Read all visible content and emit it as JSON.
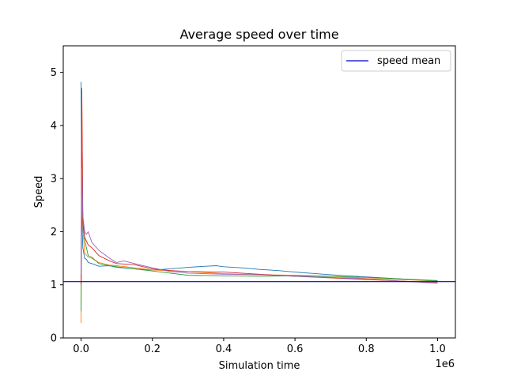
{
  "chart_data": {
    "type": "line",
    "title": "Average speed over time",
    "xlabel": "Simulation time",
    "ylabel": "Speed",
    "x_offset_label": "1e6",
    "xlim": [
      -0.05,
      1.05
    ],
    "ylim": [
      0,
      5.5
    ],
    "x_ticks": [
      0.0,
      0.2,
      0.4,
      0.6,
      0.8,
      1.0
    ],
    "x_tick_labels": [
      "0.0",
      "0.2",
      "0.4",
      "0.6",
      "0.8",
      "1.0"
    ],
    "y_ticks": [
      0,
      1,
      2,
      3,
      4,
      5
    ],
    "y_tick_labels": [
      "0",
      "1",
      "2",
      "3",
      "4",
      "5"
    ],
    "grid": false,
    "legend": {
      "placement": "top-right",
      "entries": [
        {
          "label": "speed mean",
          "color": "#0000cc"
        }
      ]
    },
    "hline": {
      "label": "speed mean",
      "y": 1.06,
      "color": "#0000cc"
    },
    "series": [
      {
        "color": "#1f77b4",
        "x": [
          0,
          0.002,
          0.005,
          0.01,
          0.015,
          0.02,
          0.03,
          0.05,
          0.08,
          0.1,
          0.15,
          0.2,
          0.25,
          0.3,
          0.35,
          0.38,
          0.4,
          0.45,
          0.5,
          0.55,
          0.6,
          0.7,
          0.8,
          0.9,
          1.0
        ],
        "y": [
          4.82,
          2.3,
          1.7,
          1.5,
          1.48,
          1.42,
          1.4,
          1.35,
          1.36,
          1.33,
          1.3,
          1.28,
          1.3,
          1.33,
          1.35,
          1.36,
          1.34,
          1.32,
          1.29,
          1.27,
          1.24,
          1.19,
          1.15,
          1.11,
          1.08
        ]
      },
      {
        "color": "#ff7f0e",
        "x": [
          0,
          0.002,
          0.005,
          0.01,
          0.02,
          0.03,
          0.05,
          0.08,
          0.1,
          0.15,
          0.2,
          0.3,
          0.4,
          0.5,
          0.6,
          0.7,
          0.8,
          0.9,
          1.0
        ],
        "y": [
          0.28,
          4.65,
          2.1,
          1.6,
          1.52,
          1.5,
          1.42,
          1.37,
          1.36,
          1.32,
          1.28,
          1.25,
          1.21,
          1.19,
          1.18,
          1.16,
          1.12,
          1.1,
          1.07
        ]
      },
      {
        "color": "#2ca02c",
        "x": [
          0,
          0.002,
          0.005,
          0.01,
          0.02,
          0.03,
          0.05,
          0.08,
          0.1,
          0.15,
          0.2,
          0.25,
          0.3,
          0.4,
          0.5,
          0.6,
          0.7,
          0.8,
          0.9,
          1.0
        ],
        "y": [
          0.5,
          3.8,
          2.2,
          1.85,
          1.55,
          1.52,
          1.4,
          1.36,
          1.34,
          1.3,
          1.26,
          1.22,
          1.18,
          1.17,
          1.16,
          1.17,
          1.16,
          1.14,
          1.11,
          1.07
        ]
      },
      {
        "color": "#d62728",
        "x": [
          0,
          0.002,
          0.005,
          0.01,
          0.02,
          0.03,
          0.05,
          0.08,
          0.1,
          0.15,
          0.2,
          0.25,
          0.3,
          0.4,
          0.5,
          0.6,
          0.7,
          0.8,
          0.9,
          1.0
        ],
        "y": [
          1.0,
          4.7,
          2.15,
          1.9,
          1.75,
          1.7,
          1.55,
          1.45,
          1.4,
          1.38,
          1.3,
          1.27,
          1.25,
          1.24,
          1.2,
          1.16,
          1.13,
          1.1,
          1.07,
          1.04
        ]
      },
      {
        "color": "#9467bd",
        "x": [
          0,
          0.002,
          0.005,
          0.01,
          0.015,
          0.02,
          0.03,
          0.05,
          0.08,
          0.1,
          0.12,
          0.15,
          0.2,
          0.25,
          0.3,
          0.4,
          0.5,
          0.6,
          0.7,
          0.8,
          0.9,
          1.0
        ],
        "y": [
          1.2,
          3.2,
          2.3,
          2.0,
          1.95,
          2.0,
          1.8,
          1.65,
          1.5,
          1.42,
          1.45,
          1.4,
          1.32,
          1.25,
          1.22,
          1.2,
          1.19,
          1.16,
          1.14,
          1.11,
          1.07,
          1.03
        ]
      }
    ]
  }
}
